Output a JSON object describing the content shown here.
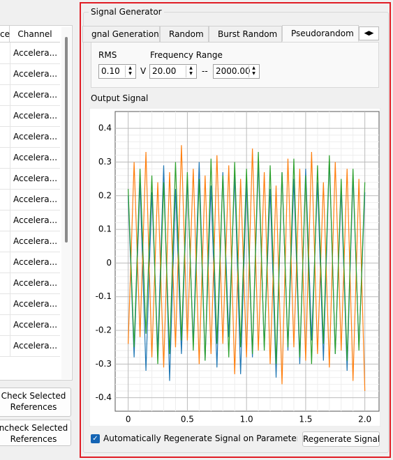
{
  "table": {
    "headers": [
      "ce",
      "Channel"
    ],
    "channels": [
      "Accelera...",
      "Accelera...",
      "Accelera...",
      "Accelera...",
      "Accelera...",
      "Accelera...",
      "Accelera...",
      "Accelera...",
      "Accelera...",
      "Accelera...",
      "Accelera...",
      "Accelera...",
      "Accelera...",
      "Accelera...",
      "Accelera..."
    ]
  },
  "buttons": {
    "check": [
      "Check Selected",
      "References"
    ],
    "uncheck": [
      "ncheck Selected",
      "References"
    ]
  },
  "signal_generator": {
    "title": "Signal Generator",
    "tabs": [
      "gnal Generation",
      "Random",
      "Burst Random",
      "Pseudorandom"
    ],
    "active_tab": 3,
    "rms_label": "RMS",
    "frequency_range_label": "Frequency Range",
    "rms": "0.10",
    "unit": "V",
    "freq_min": "20.00",
    "separator": "--",
    "freq_max": "2000.00"
  },
  "output_signal_label": "Output Signal",
  "chart_data": {
    "type": "line",
    "x": [
      0,
      0.05,
      0.1,
      0.15,
      0.2,
      0.25,
      0.3,
      0.35,
      0.4,
      0.45,
      0.5,
      0.55,
      0.6,
      0.65,
      0.7,
      0.75,
      0.8,
      0.85,
      0.9,
      0.95,
      1.0,
      1.05,
      1.1,
      1.15,
      1.2,
      1.25,
      1.3,
      1.35,
      1.4,
      1.45,
      1.5,
      1.55,
      1.6,
      1.65,
      1.7,
      1.75,
      1.8,
      1.85,
      1.9,
      1.95,
      2.0
    ],
    "series": [
      {
        "name": "blue",
        "color": "#1f77b4",
        "values": [
          0.2,
          -0.28,
          0.24,
          -0.32,
          0.21,
          -0.26,
          0.29,
          -0.35,
          0.22,
          -0.27,
          0.25,
          -0.24,
          0.3,
          -0.29,
          0.23,
          -0.31,
          0.27,
          -0.22,
          0.26,
          -0.33,
          0.24,
          -0.28,
          0.3,
          -0.25,
          0.22,
          -0.34,
          0.27,
          -0.26,
          0.25,
          -0.3,
          0.28,
          -0.23,
          0.24,
          -0.29,
          0.31,
          -0.27,
          0.22,
          -0.32,
          0.26,
          -0.25,
          0.21
        ]
      },
      {
        "name": "orange",
        "color": "#ff7f0e",
        "values": [
          -0.24,
          0.3,
          -0.22,
          0.33,
          -0.28,
          0.24,
          -0.31,
          0.27,
          -0.25,
          0.35,
          -0.23,
          0.28,
          -0.3,
          0.26,
          -0.27,
          0.32,
          -0.24,
          0.29,
          -0.33,
          0.25,
          -0.28,
          0.34,
          -0.26,
          0.27,
          -0.3,
          0.23,
          -0.36,
          0.31,
          -0.25,
          0.28,
          -0.29,
          0.33,
          -0.27,
          0.24,
          -0.31,
          0.3,
          -0.26,
          0.28,
          -0.35,
          0.25,
          -0.38
        ]
      },
      {
        "name": "green",
        "color": "#2ca02c",
        "values": [
          0.22,
          -0.25,
          0.28,
          -0.21,
          0.26,
          -0.3,
          0.24,
          -0.27,
          0.3,
          -0.23,
          0.27,
          -0.26,
          0.25,
          -0.29,
          0.31,
          -0.24,
          0.26,
          -0.28,
          0.3,
          -0.25,
          0.28,
          -0.27,
          0.33,
          -0.26,
          0.29,
          -0.3,
          0.27,
          -0.25,
          0.31,
          -0.28,
          0.26,
          -0.3,
          0.29,
          -0.24,
          0.32,
          -0.27,
          0.25,
          -0.29,
          0.28,
          -0.26,
          0.24
        ]
      }
    ],
    "xlim": [
      -0.11,
      2.12
    ],
    "ylim": [
      -0.44,
      0.45
    ],
    "xticks": [
      0,
      0.5,
      {
        "value": 1,
        "label": "1.0"
      },
      1.5,
      {
        "value": 2,
        "label": "2.0"
      }
    ],
    "yticks": [
      0.4,
      0.3,
      0.2,
      0.1,
      0,
      -0.1,
      -0.2,
      -0.3,
      -0.4
    ],
    "grid": true
  },
  "auto_regenerate": {
    "label": "Automatically Regenerate Signal on Parameter C",
    "checked": true
  },
  "regenerate_button": "Regenerate Signal"
}
